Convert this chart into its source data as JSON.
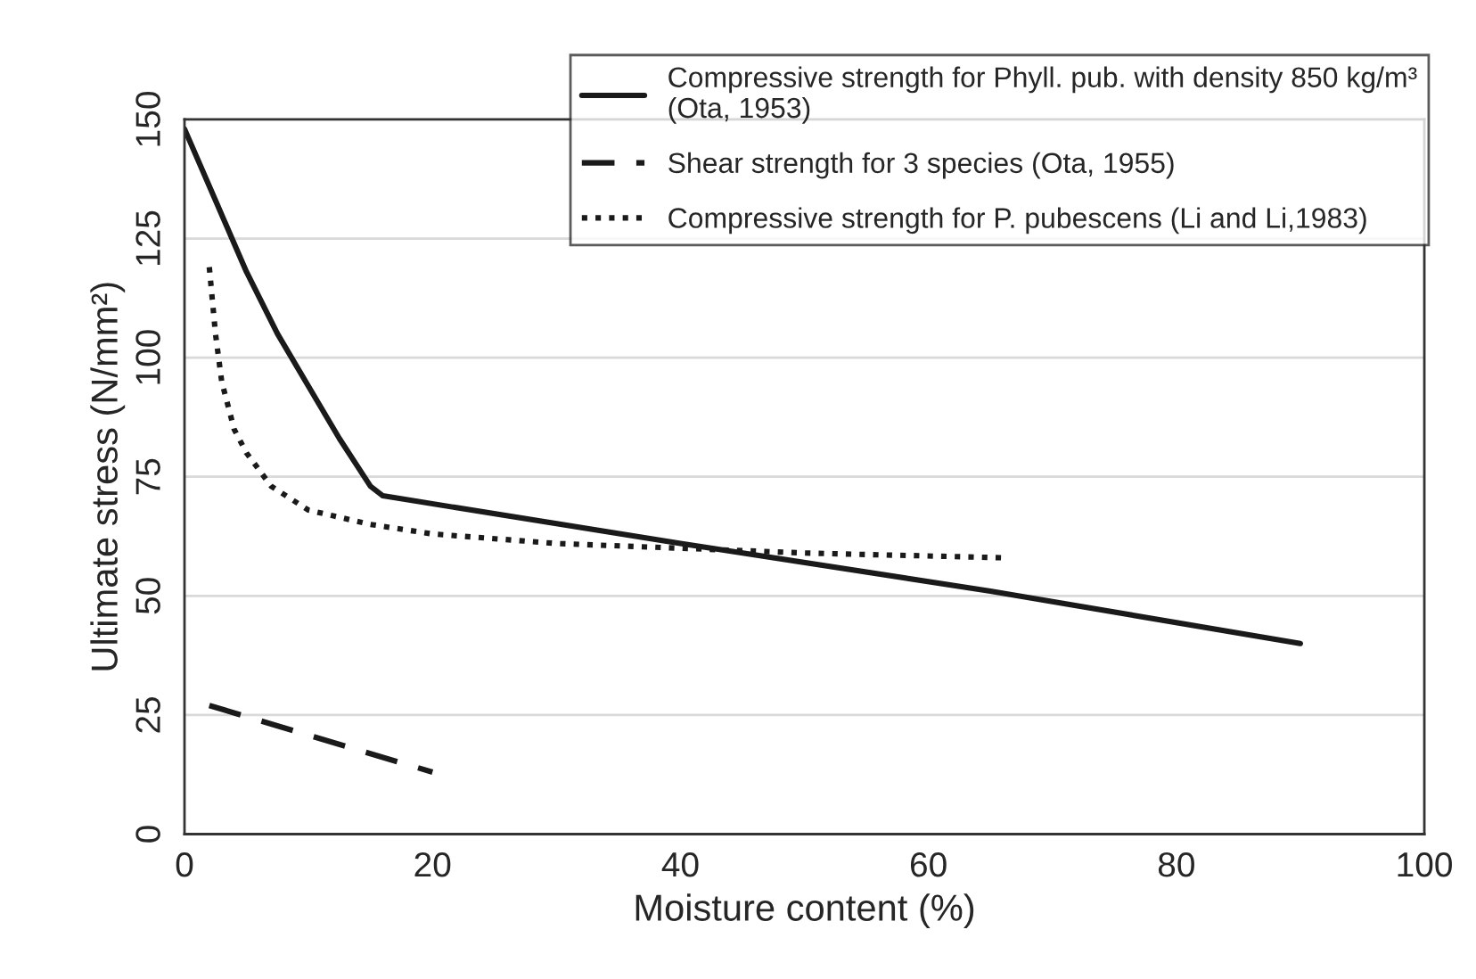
{
  "chart_data": {
    "type": "line",
    "xlabel": "Moisture content (%)",
    "ylabel": "Ultimate stress (N/mm²)",
    "xlim": [
      0,
      100
    ],
    "xticks": [
      0,
      20,
      40,
      60,
      80,
      100
    ],
    "ylim": [
      0,
      150
    ],
    "yticks": [
      0,
      25,
      50,
      75,
      100,
      125,
      150
    ],
    "grid": "y",
    "legend": "top right",
    "marker": "none",
    "series": [
      {
        "name": "Compressive strength for Phyll. pub. with density 850 kg/m³\n(Ota, 1953)",
        "color": "#1a1a1a",
        "line_style": "solid",
        "x": [
          0,
          2.5,
          5,
          7.5,
          10,
          12.5,
          15,
          16,
          40,
          65,
          90
        ],
        "values": [
          148,
          133,
          118,
          105,
          94,
          83,
          73,
          71,
          61,
          51,
          40
        ]
      },
      {
        "name": "Shear strength for 3 species (Ota, 1955)",
        "color": "#1a1a1a",
        "line_style": "dashed",
        "x": [
          2,
          20
        ],
        "values": [
          27,
          13
        ]
      },
      {
        "name": "Compressive strength for P. pubescens (Li and Li,1983)",
        "color": "#1a1a1a",
        "line_style": "dotted",
        "x": [
          2,
          2.5,
          3,
          4,
          5,
          7,
          10,
          15,
          20,
          30,
          40,
          50,
          66
        ],
        "values": [
          119,
          105,
          95,
          85,
          80,
          73,
          68,
          65,
          63,
          61,
          60,
          59,
          58
        ]
      }
    ]
  }
}
